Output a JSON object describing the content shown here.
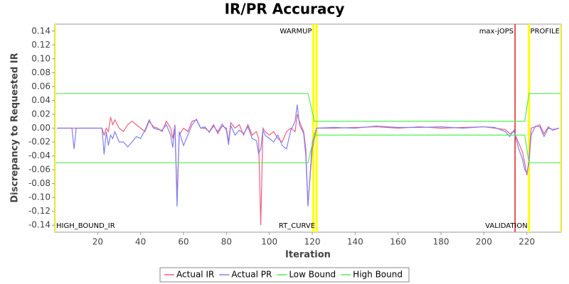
{
  "chart_data": {
    "type": "line",
    "title": "IR/PR Accuracy",
    "x_label": "Iteration",
    "y_label": "Discrepancy to Requested IR",
    "xlim": [
      0,
      236
    ],
    "xticks": [
      20,
      40,
      60,
      80,
      100,
      120,
      140,
      160,
      180,
      200,
      220
    ],
    "ylim": [
      -0.15,
      0.15
    ],
    "yticks": [
      -0.14,
      -0.12,
      {
        "value": -0.1,
        "label": "-0.10"
      },
      -0.08,
      -0.06,
      -0.04,
      -0.02,
      {
        "value": 0,
        "label": "0.00"
      },
      0.02,
      0.04,
      0.06,
      0.08,
      {
        "value": 0.1,
        "label": "0.10"
      },
      0.12,
      0.14
    ],
    "grid": false,
    "legend": "bottom",
    "series": [
      {
        "name": "Actual IR",
        "color": "#f06080",
        "x": [
          1,
          5,
          8,
          9,
          10,
          15,
          20,
          22,
          23,
          24,
          25,
          26,
          27,
          28,
          30,
          32,
          34,
          36,
          38,
          40,
          42,
          44,
          46,
          48,
          50,
          52,
          54,
          55,
          56,
          57,
          58,
          60,
          62,
          64,
          66,
          68,
          70,
          72,
          74,
          76,
          78,
          80,
          81,
          82,
          84,
          86,
          88,
          90,
          92,
          94,
          95,
          96,
          97,
          98,
          100,
          102,
          104,
          106,
          108,
          110,
          112,
          113,
          114,
          116,
          117,
          118,
          120,
          122,
          130,
          140,
          150,
          160,
          170,
          180,
          190,
          200,
          205,
          210,
          212,
          214,
          216,
          218,
          219,
          220,
          221,
          222,
          224,
          226,
          228,
          230,
          232,
          235
        ],
        "values": [
          0,
          0,
          0,
          0,
          0,
          0,
          0,
          0,
          -0.01,
          0,
          -0.005,
          0.016,
          0.005,
          0.012,
          0,
          -0.005,
          0.005,
          0.01,
          0.005,
          0,
          -0.005,
          0.01,
          0.002,
          0,
          -0.005,
          0.01,
          0,
          -0.015,
          0.005,
          -0.1,
          -0.01,
          0,
          -0.005,
          0.01,
          0.012,
          0,
          0,
          -0.005,
          0.005,
          -0.008,
          0.003,
          0,
          -0.02,
          0.008,
          0,
          0.005,
          -0.01,
          0.005,
          -0.01,
          -0.005,
          -0.015,
          -0.14,
          0,
          -0.005,
          -0.01,
          -0.005,
          -0.015,
          -0.02,
          -0.005,
          0,
          -0.005,
          0.02,
          0.01,
          -0.005,
          -0.03,
          -0.11,
          -0.03,
          0,
          0,
          0.001,
          0.002,
          0,
          0.002,
          0,
          0.001,
          0.002,
          0,
          -0.002,
          -0.008,
          -0.005,
          -0.02,
          -0.035,
          -0.05,
          -0.068,
          -0.045,
          0,
          0.002,
          0.005,
          -0.008,
          0.002,
          -0.003,
          0
        ]
      },
      {
        "name": "Actual PR",
        "color": "#8080f0",
        "x": [
          1,
          5,
          8,
          9,
          10,
          15,
          20,
          22,
          23,
          24,
          25,
          26,
          27,
          28,
          30,
          32,
          34,
          36,
          38,
          40,
          42,
          44,
          46,
          48,
          50,
          52,
          54,
          55,
          56,
          57,
          58,
          60,
          62,
          64,
          66,
          68,
          70,
          72,
          74,
          76,
          78,
          80,
          81,
          82,
          84,
          86,
          88,
          90,
          92,
          94,
          95,
          96,
          97,
          98,
          100,
          102,
          104,
          106,
          108,
          110,
          112,
          113,
          114,
          116,
          117,
          118,
          120,
          122,
          130,
          140,
          150,
          160,
          170,
          180,
          190,
          200,
          205,
          210,
          212,
          214,
          216,
          218,
          219,
          220,
          221,
          222,
          224,
          226,
          228,
          230,
          232,
          235
        ],
        "values": [
          0,
          0,
          0,
          -0.03,
          0,
          0,
          0,
          0,
          -0.038,
          -0.005,
          -0.025,
          -0.01,
          -0.015,
          -0.005,
          -0.02,
          -0.02,
          -0.027,
          -0.02,
          -0.012,
          -0.015,
          -0.003,
          0.012,
          0,
          -0.002,
          -0.003,
          0.005,
          -0.01,
          -0.028,
          0.003,
          -0.113,
          -0.005,
          -0.025,
          -0.01,
          0.005,
          0.013,
          0,
          0.002,
          -0.006,
          0.003,
          -0.005,
          0.006,
          -0.003,
          -0.024,
          0.004,
          -0.01,
          -0.003,
          -0.008,
          0.002,
          -0.015,
          -0.018,
          -0.037,
          -0.03,
          -0.003,
          -0.01,
          -0.015,
          -0.02,
          -0.01,
          -0.025,
          -0.03,
          -0.003,
          0.01,
          0.034,
          0.005,
          -0.008,
          -0.04,
          -0.113,
          -0.02,
          0,
          0.001,
          0,
          0.003,
          0.001,
          0.001,
          0.002,
          0,
          0.002,
          0.001,
          -0.005,
          -0.012,
          -0.003,
          -0.028,
          -0.045,
          -0.06,
          -0.065,
          -0.05,
          -0.01,
          0.003,
          0.002,
          -0.012,
          0,
          -0.002,
          0
        ]
      },
      {
        "name": "Low Bound",
        "color": "#55ee55",
        "x": [
          0.5,
          118,
          121,
          219,
          221,
          235.5
        ],
        "values": [
          -0.05,
          -0.05,
          -0.01,
          -0.01,
          -0.05,
          -0.05
        ]
      },
      {
        "name": "High Bound",
        "color": "#55ee55",
        "x": [
          0.5,
          118,
          121,
          219,
          221,
          235.5
        ],
        "values": [
          0.05,
          0.05,
          0.01,
          0.01,
          0.05,
          0.05
        ]
      }
    ],
    "markers": [
      {
        "label": "HIGH_BOUND_IR",
        "x": 0,
        "color": "#ffff00",
        "position": "bottom",
        "align": "left"
      },
      {
        "label": "WARMUP",
        "x": 120.5,
        "color": "#ffff00",
        "position": "top",
        "align": "right"
      },
      {
        "label": "RT_CURVE",
        "x": 122,
        "color": "#ffff00",
        "position": "bottom",
        "align": "right"
      },
      {
        "label": "max-jOPS",
        "x": 214.5,
        "color": "#dd2222",
        "position": "top",
        "align": "right"
      },
      {
        "label": "VALIDATION",
        "x": 221,
        "color": "#ffff00",
        "position": "bottom",
        "align": "right"
      },
      {
        "label": "PROFILE",
        "x": 236,
        "color": "#ffff00",
        "position": "top",
        "align": "right"
      }
    ]
  }
}
